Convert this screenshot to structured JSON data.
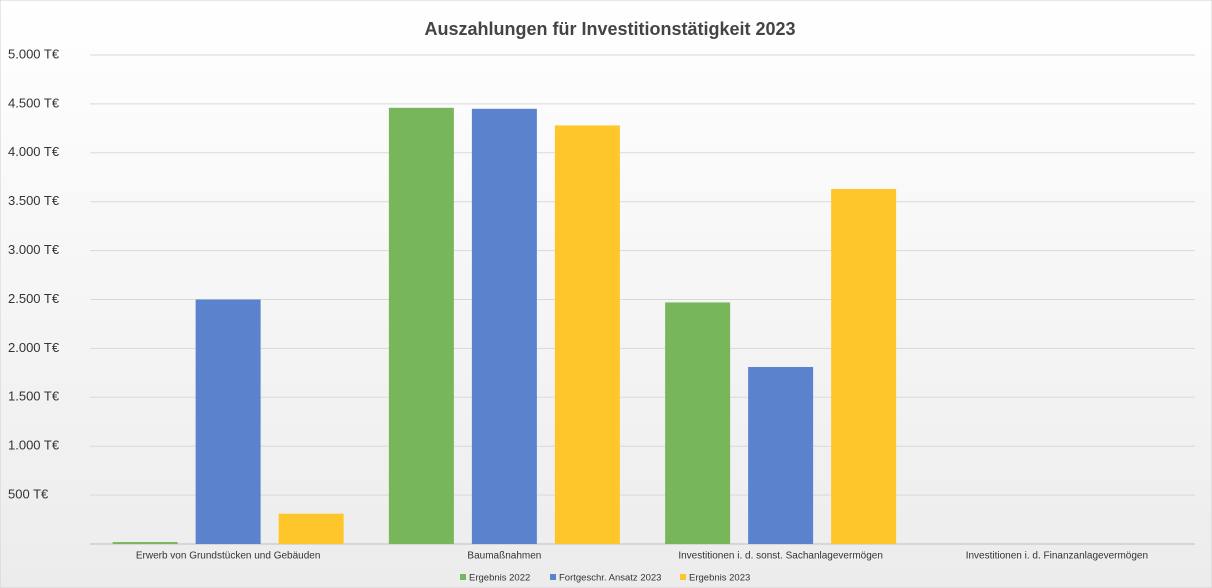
{
  "chart_data": {
    "type": "bar",
    "title": "Auszahlungen  für Investitionstätigkeit  2023",
    "categories": [
      "Erwerb von Grundstücken und Gebäuden",
      "Baumaßnahmen",
      "Investitionen i. d. sonst. Sachanlagevermögen",
      "Investitionen i. d. Finanzanlagevermögen"
    ],
    "series": [
      {
        "name": "Ergebnis 2022",
        "color": "#78b65b",
        "values": [
          20,
          4460,
          2470,
          0
        ]
      },
      {
        "name": "Fortgeschr. Ansatz 2023",
        "color": "#5b83cd",
        "values": [
          2500,
          4450,
          1810,
          0
        ]
      },
      {
        "name": "Ergebnis 2023",
        "color": "#ffc62b",
        "values": [
          310,
          4280,
          3630,
          0
        ]
      }
    ],
    "ylim": [
      0,
      5000
    ],
    "yticks": [
      {
        "value": 500,
        "label": "500 T€"
      },
      {
        "value": 1000,
        "label": "1.000 T€"
      },
      {
        "value": 1500,
        "label": "1.500 T€"
      },
      {
        "value": 2000,
        "label": "2.000 T€"
      },
      {
        "value": 2500,
        "label": "2.500 T€"
      },
      {
        "value": 3000,
        "label": "3.000 T€"
      },
      {
        "value": 3500,
        "label": "3.500 T€"
      },
      {
        "value": 4000,
        "label": "4.000 T€"
      },
      {
        "value": 4500,
        "label": "4.500 T€"
      },
      {
        "value": 5000,
        "label": "5.000 T€"
      }
    ],
    "grid": true,
    "legend": "bottom"
  }
}
